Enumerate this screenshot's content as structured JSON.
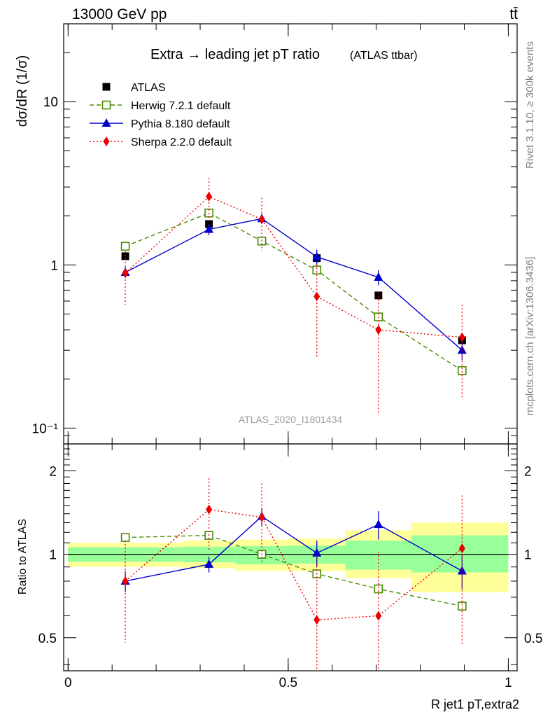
{
  "header": {
    "left": "13000 GeV pp",
    "right": "tt̄"
  },
  "side": {
    "rivet": "Rivet 3.1.10, ≥ 300k events",
    "mcplots": "mcplots.cern.ch [arXiv:1306.3436]"
  },
  "chart_data": {
    "type": "scatter",
    "title": "Extra → leading jet pT ratio",
    "subtitle": "(ATLAS ttbar)",
    "watermark": "ATLAS_2020_I1801434",
    "ylabel": "dσ/dR (1/σ)",
    "xlabel": "R jet1 pT,extra2",
    "ratio_ylabel": "Ratio to ATLAS",
    "xlim": [
      -0.01,
      1.02
    ],
    "ylim": [
      0.08,
      30
    ],
    "yscale": "log",
    "ratio_ylim": [
      0.38,
      2.5
    ],
    "ratio_yscale": "log",
    "x_ticks": [
      "0",
      "0.5",
      "1"
    ],
    "x_tick_values": [
      0,
      0.5,
      1
    ],
    "y_ticks": [
      "10⁻¹",
      "1",
      "10"
    ],
    "y_tick_values": [
      0.1,
      1,
      10
    ],
    "ratio_y_ticks": [
      "0.5",
      "1",
      "2"
    ],
    "ratio_y_tick_values": [
      0.5,
      1,
      2
    ],
    "legend_position": "top-left",
    "series": [
      {
        "name": "ATLAS",
        "color": "#000000",
        "marker": "square",
        "x": [
          0.13,
          0.32,
          0.44,
          0.565,
          0.705,
          0.895
        ],
        "y": [
          1.13,
          1.78,
          1.4,
          1.1,
          0.65,
          0.345
        ],
        "ratio": [
          1.0,
          1.0,
          1.0,
          1.0,
          1.0,
          1.0
        ]
      },
      {
        "name": "Herwig 7.2.1 default",
        "color": "#4a8a00",
        "marker": "open-square",
        "line": "dashed",
        "x": [
          0.13,
          0.32,
          0.44,
          0.565,
          0.705,
          0.895
        ],
        "y": [
          1.3,
          2.08,
          1.4,
          0.93,
          0.48,
          0.225
        ],
        "ratio": [
          1.15,
          1.17,
          1.0,
          0.85,
          0.75,
          0.65
        ],
        "ratio_err": [
          0.0,
          0.02,
          0.03,
          0.03,
          0.04,
          0.03
        ]
      },
      {
        "name": "Pythia 8.180 default",
        "color": "#0000cc",
        "marker": "triangle",
        "line": "solid",
        "x": [
          0.13,
          0.32,
          0.44,
          0.565,
          0.705,
          0.895
        ],
        "y": [
          0.9,
          1.65,
          1.92,
          1.12,
          0.84,
          0.3
        ],
        "y_err": [
          0.07,
          0.13,
          0.14,
          0.12,
          0.09,
          0.04
        ],
        "ratio": [
          0.8,
          0.92,
          1.37,
          1.01,
          1.28,
          0.87
        ],
        "ratio_err": [
          0.07,
          0.06,
          0.1,
          0.11,
          0.15,
          0.12
        ]
      },
      {
        "name": "Sherpa 2.2.0 default",
        "color": "#ee0000",
        "marker": "diamond",
        "line": "dotted",
        "x": [
          0.13,
          0.32,
          0.44,
          0.565,
          0.705,
          0.895
        ],
        "y": [
          0.89,
          2.62,
          1.9,
          0.64,
          0.4,
          0.36
        ],
        "y_err": [
          0.32,
          0.8,
          0.68,
          0.37,
          0.28,
          0.21
        ],
        "ratio": [
          0.8,
          1.45,
          1.36,
          0.58,
          0.6,
          1.05
        ],
        "ratio_err": [
          0.32,
          0.43,
          0.44,
          0.41,
          0.42,
          0.58
        ]
      }
    ],
    "bands": {
      "bin_edges": [
        0,
        0.26,
        0.38,
        0.5,
        0.63,
        0.78,
        1.0
      ],
      "inner": [
        [
          0.94,
          1.06
        ],
        [
          0.935,
          1.065
        ],
        [
          0.92,
          1.07
        ],
        [
          0.925,
          1.075
        ],
        [
          0.88,
          1.12
        ],
        [
          0.86,
          1.17
        ]
      ],
      "outer": [
        [
          0.9,
          1.1
        ],
        [
          0.89,
          1.12
        ],
        [
          0.87,
          1.13
        ],
        [
          0.87,
          1.14
        ],
        [
          0.82,
          1.22
        ],
        [
          0.73,
          1.3
        ]
      ]
    }
  }
}
